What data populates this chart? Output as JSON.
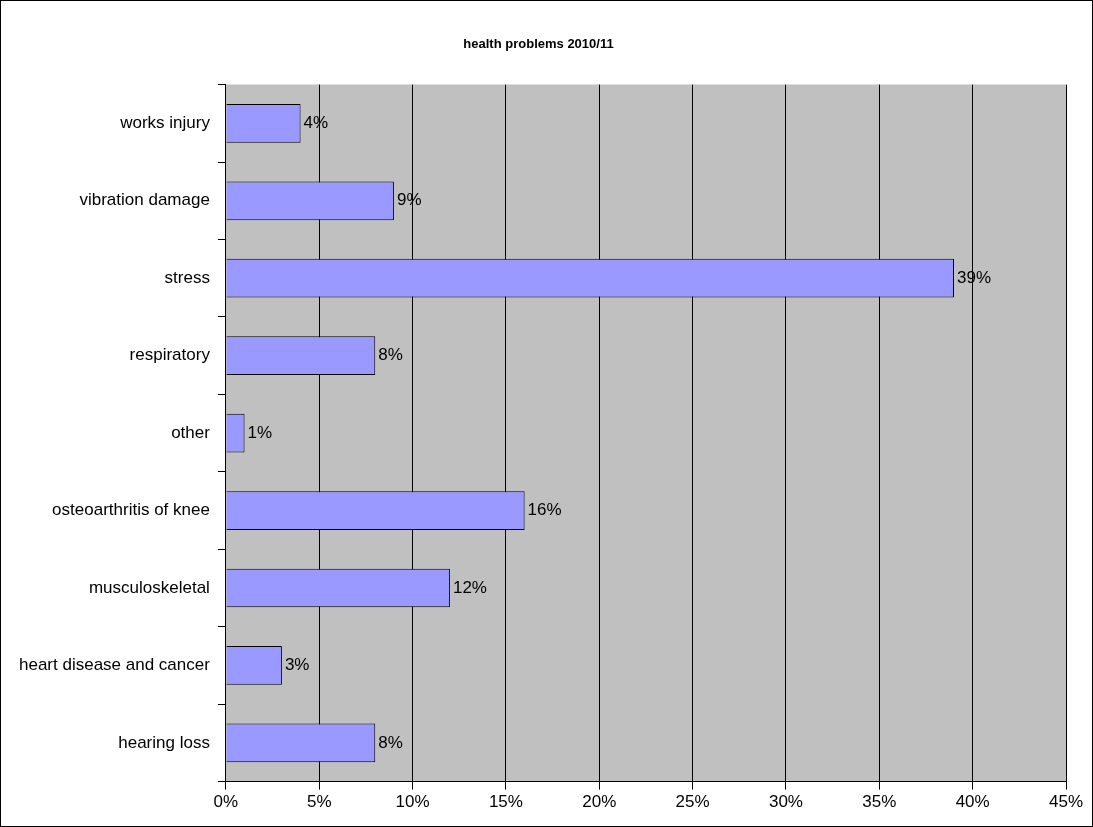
{
  "chart_data": {
    "type": "bar",
    "orientation": "horizontal",
    "title": "health problems 2010/11",
    "categories": [
      "works injury",
      "vibration damage",
      "stress",
      "respiratory",
      "other",
      "osteoarthritis of knee",
      "musculoskeletal",
      "heart disease and cancer",
      "hearing loss"
    ],
    "values": [
      4,
      9,
      39,
      8,
      1,
      16,
      12,
      3,
      8
    ],
    "value_labels": [
      "4%",
      "9%",
      "39%",
      "8%",
      "1%",
      "16%",
      "12%",
      "3%",
      "8%"
    ],
    "color": "#9999ff",
    "xlim": [
      0,
      45
    ],
    "xticks": [
      {
        "value": 0,
        "label": "0%"
      },
      {
        "value": 5,
        "label": "5%"
      },
      {
        "value": 10,
        "label": "10%"
      },
      {
        "value": 15,
        "label": "15%"
      },
      {
        "value": 20,
        "label": "20%"
      },
      {
        "value": 25,
        "label": "25%"
      },
      {
        "value": 30,
        "label": "30%"
      },
      {
        "value": 35,
        "label": "35%"
      },
      {
        "value": 40,
        "label": "40%"
      },
      {
        "value": 45,
        "label": "45%"
      }
    ],
    "grid": "x",
    "legend": false
  }
}
